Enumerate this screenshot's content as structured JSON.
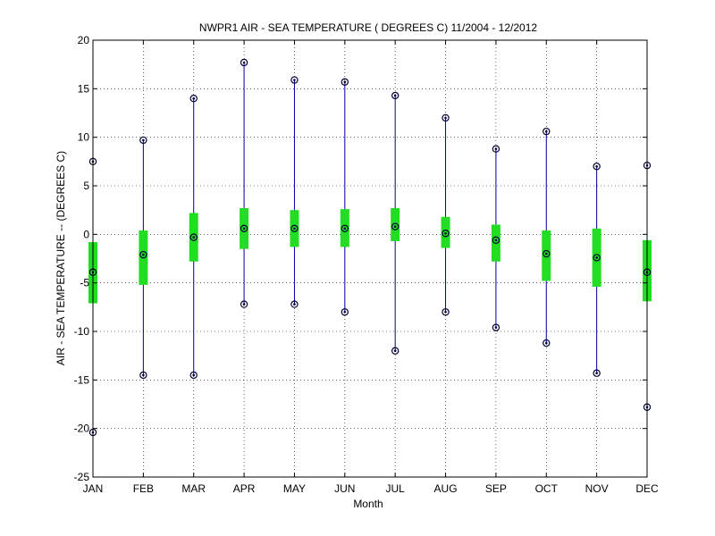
{
  "chart_data": {
    "type": "box",
    "title": "NWPR1  AIR - SEA TEMPERATURE ( DEGREES C) 11/2004 - 12/2012",
    "xlabel": "Month",
    "ylabel": "AIR - SEA TEMPERATURE -- (DEGREES C)",
    "ylim": [
      -25,
      20
    ],
    "yticks": [
      20,
      15,
      10,
      5,
      0,
      -5,
      -10,
      -15,
      -20,
      -25
    ],
    "grid": true,
    "categories": [
      "JAN",
      "FEB",
      "MAR",
      "APR",
      "MAY",
      "JUN",
      "JUL",
      "AUG",
      "SEP",
      "OCT",
      "NOV",
      "DEC"
    ],
    "max": [
      7.5,
      9.7,
      14.0,
      17.7,
      15.9,
      15.7,
      14.3,
      12.0,
      8.8,
      10.6,
      7.0,
      7.1
    ],
    "q3": [
      -0.8,
      0.4,
      2.2,
      2.7,
      2.5,
      2.6,
      2.7,
      1.8,
      1.0,
      0.4,
      0.6,
      -0.6
    ],
    "median": [
      -3.9,
      -2.1,
      -0.3,
      0.6,
      0.6,
      0.6,
      0.8,
      0.1,
      -0.6,
      -2.0,
      -2.4,
      -3.9
    ],
    "q1": [
      -7.1,
      -5.2,
      -2.8,
      -1.5,
      -1.3,
      -1.3,
      -0.7,
      -1.4,
      -2.8,
      -4.8,
      -5.4,
      -6.9
    ],
    "min": [
      -20.4,
      -14.5,
      -14.5,
      -7.2,
      -7.2,
      -8.0,
      -12.0,
      -8.0,
      -9.6,
      -11.2,
      -14.3,
      -17.8
    ],
    "colors": {
      "whisker": "#0000a0",
      "box": "#22dd22",
      "marker": "#000033"
    }
  }
}
